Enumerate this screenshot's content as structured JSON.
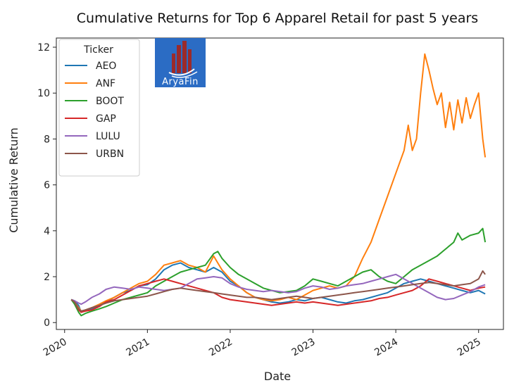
{
  "chart_data": {
    "type": "line",
    "title": "Cumulative Returns for Top 6 Apparel Retail for past 5 years",
    "xlabel": "Date",
    "ylabel": "Cumulative Return",
    "xlim": [
      2019.9,
      2025.3
    ],
    "ylim": [
      -0.3,
      12.4
    ],
    "x_ticks": [
      2020,
      2021,
      2022,
      2023,
      2024,
      2025
    ],
    "x_tick_labels": [
      "2020",
      "2021",
      "2022",
      "2023",
      "2024",
      "2025"
    ],
    "y_ticks": [
      0,
      2,
      4,
      6,
      8,
      10,
      12
    ],
    "y_tick_labels": [
      "0",
      "2",
      "4",
      "6",
      "8",
      "10",
      "12"
    ],
    "grid": false,
    "legend": {
      "title": "Ticker",
      "placement": "top-left"
    },
    "series": [
      {
        "name": "AEO",
        "color": "#1f77b4",
        "x": [
          2020.08,
          2020.12,
          2020.17,
          2020.2,
          2020.25,
          2020.33,
          2020.42,
          2020.5,
          2020.6,
          2020.7,
          2020.8,
          2020.9,
          2021.0,
          2021.1,
          2021.2,
          2021.3,
          2021.4,
          2021.5,
          2021.6,
          2021.7,
          2021.8,
          2021.9,
          2022.0,
          2022.1,
          2022.2,
          2022.3,
          2022.4,
          2022.5,
          2022.6,
          2022.7,
          2022.8,
          2022.9,
          2023.0,
          2023.1,
          2023.2,
          2023.3,
          2023.4,
          2023.5,
          2023.6,
          2023.7,
          2023.8,
          2023.9,
          2024.0,
          2024.1,
          2024.2,
          2024.3,
          2024.4,
          2024.5,
          2024.6,
          2024.7,
          2024.8,
          2024.9,
          2025.0,
          2025.08
        ],
        "values": [
          1.0,
          0.95,
          0.75,
          0.45,
          0.55,
          0.6,
          0.75,
          0.9,
          1.1,
          1.3,
          1.4,
          1.6,
          1.65,
          1.9,
          2.3,
          2.5,
          2.6,
          2.4,
          2.3,
          2.2,
          2.4,
          2.2,
          1.8,
          1.6,
          1.3,
          1.1,
          1.0,
          0.9,
          0.85,
          0.9,
          1.0,
          0.95,
          1.05,
          1.1,
          1.0,
          0.9,
          0.85,
          0.95,
          1.0,
          1.1,
          1.2,
          1.3,
          1.5,
          1.7,
          1.8,
          1.9,
          1.8,
          1.7,
          1.6,
          1.5,
          1.4,
          1.3,
          1.4,
          1.25
        ]
      },
      {
        "name": "ANF",
        "color": "#ff7f0e",
        "x": [
          2020.08,
          2020.12,
          2020.17,
          2020.2,
          2020.25,
          2020.33,
          2020.42,
          2020.5,
          2020.6,
          2020.7,
          2020.8,
          2020.9,
          2021.0,
          2021.1,
          2021.2,
          2021.3,
          2021.4,
          2021.5,
          2021.6,
          2021.7,
          2021.8,
          2021.85,
          2021.9,
          2022.0,
          2022.1,
          2022.2,
          2022.3,
          2022.4,
          2022.5,
          2022.6,
          2022.7,
          2022.8,
          2022.9,
          2023.0,
          2023.1,
          2023.2,
          2023.3,
          2023.4,
          2023.5,
          2023.6,
          2023.7,
          2023.8,
          2023.9,
          2024.0,
          2024.1,
          2024.15,
          2024.2,
          2024.25,
          2024.3,
          2024.35,
          2024.4,
          2024.45,
          2024.5,
          2024.55,
          2024.6,
          2024.65,
          2024.7,
          2024.75,
          2024.8,
          2024.85,
          2024.9,
          2024.95,
          2025.0,
          2025.05,
          2025.08
        ],
        "values": [
          1.0,
          0.9,
          0.65,
          0.5,
          0.55,
          0.65,
          0.8,
          0.95,
          1.1,
          1.3,
          1.5,
          1.7,
          1.8,
          2.1,
          2.5,
          2.6,
          2.7,
          2.5,
          2.4,
          2.2,
          2.9,
          2.6,
          2.3,
          1.9,
          1.6,
          1.3,
          1.1,
          1.0,
          0.95,
          1.0,
          1.1,
          1.0,
          1.2,
          1.4,
          1.5,
          1.6,
          1.5,
          1.6,
          2.0,
          2.8,
          3.5,
          4.5,
          5.5,
          6.5,
          7.5,
          8.6,
          7.5,
          8.0,
          10.0,
          11.7,
          11.0,
          10.2,
          9.5,
          10.0,
          8.5,
          9.6,
          8.4,
          9.7,
          8.7,
          9.8,
          8.9,
          9.5,
          10.0,
          8.0,
          7.2
        ]
      },
      {
        "name": "BOOT",
        "color": "#2ca02c",
        "x": [
          2020.08,
          2020.12,
          2020.17,
          2020.2,
          2020.25,
          2020.33,
          2020.42,
          2020.5,
          2020.6,
          2020.7,
          2020.8,
          2020.9,
          2021.0,
          2021.1,
          2021.2,
          2021.3,
          2021.4,
          2021.5,
          2021.6,
          2021.7,
          2021.8,
          2021.85,
          2021.9,
          2022.0,
          2022.1,
          2022.2,
          2022.3,
          2022.4,
          2022.5,
          2022.6,
          2022.7,
          2022.8,
          2022.9,
          2023.0,
          2023.1,
          2023.2,
          2023.3,
          2023.4,
          2023.5,
          2023.6,
          2023.7,
          2023.8,
          2023.9,
          2024.0,
          2024.1,
          2024.2,
          2024.3,
          2024.4,
          2024.5,
          2024.6,
          2024.7,
          2024.75,
          2024.8,
          2024.9,
          2025.0,
          2025.05,
          2025.08
        ],
        "values": [
          1.0,
          0.8,
          0.45,
          0.3,
          0.4,
          0.5,
          0.6,
          0.7,
          0.85,
          1.0,
          1.1,
          1.2,
          1.3,
          1.6,
          1.8,
          2.0,
          2.2,
          2.3,
          2.4,
          2.5,
          3.0,
          3.1,
          2.8,
          2.4,
          2.1,
          1.9,
          1.7,
          1.5,
          1.4,
          1.3,
          1.35,
          1.4,
          1.6,
          1.9,
          1.8,
          1.7,
          1.6,
          1.8,
          2.0,
          2.2,
          2.3,
          2.0,
          1.8,
          1.7,
          2.0,
          2.3,
          2.5,
          2.7,
          2.9,
          3.2,
          3.5,
          3.9,
          3.6,
          3.8,
          3.9,
          4.1,
          3.5
        ]
      },
      {
        "name": "GAP",
        "color": "#d62728",
        "x": [
          2020.08,
          2020.12,
          2020.17,
          2020.2,
          2020.25,
          2020.33,
          2020.42,
          2020.5,
          2020.6,
          2020.7,
          2020.8,
          2020.9,
          2021.0,
          2021.1,
          2021.2,
          2021.3,
          2021.4,
          2021.5,
          2021.6,
          2021.7,
          2021.8,
          2021.9,
          2022.0,
          2022.1,
          2022.2,
          2022.3,
          2022.4,
          2022.5,
          2022.6,
          2022.7,
          2022.8,
          2022.9,
          2023.0,
          2023.1,
          2023.2,
          2023.3,
          2023.4,
          2023.5,
          2023.6,
          2023.7,
          2023.8,
          2023.9,
          2024.0,
          2024.1,
          2024.2,
          2024.3,
          2024.4,
          2024.5,
          2024.6,
          2024.7,
          2024.8,
          2024.9,
          2025.0,
          2025.08
        ],
        "values": [
          1.0,
          0.9,
          0.55,
          0.45,
          0.5,
          0.55,
          0.7,
          0.9,
          1.0,
          1.2,
          1.4,
          1.6,
          1.7,
          1.8,
          1.9,
          1.8,
          1.7,
          1.6,
          1.5,
          1.4,
          1.3,
          1.1,
          1.0,
          0.95,
          0.9,
          0.85,
          0.8,
          0.75,
          0.8,
          0.85,
          0.9,
          0.85,
          0.9,
          0.85,
          0.8,
          0.75,
          0.8,
          0.85,
          0.9,
          0.95,
          1.05,
          1.1,
          1.2,
          1.3,
          1.4,
          1.6,
          1.9,
          1.8,
          1.7,
          1.6,
          1.5,
          1.4,
          1.5,
          1.55
        ]
      },
      {
        "name": "LULU",
        "color": "#9467bd",
        "x": [
          2020.08,
          2020.12,
          2020.17,
          2020.2,
          2020.25,
          2020.33,
          2020.42,
          2020.5,
          2020.6,
          2020.7,
          2020.8,
          2020.9,
          2021.0,
          2021.1,
          2021.2,
          2021.3,
          2021.4,
          2021.5,
          2021.6,
          2021.7,
          2021.8,
          2021.9,
          2022.0,
          2022.1,
          2022.2,
          2022.3,
          2022.4,
          2022.5,
          2022.6,
          2022.7,
          2022.8,
          2022.9,
          2023.0,
          2023.1,
          2023.2,
          2023.3,
          2023.4,
          2023.5,
          2023.6,
          2023.7,
          2023.8,
          2023.9,
          2024.0,
          2024.1,
          2024.2,
          2024.3,
          2024.4,
          2024.5,
          2024.6,
          2024.7,
          2024.8,
          2024.9,
          2025.0,
          2025.08
        ],
        "values": [
          1.0,
          0.95,
          0.85,
          0.8,
          0.9,
          1.1,
          1.25,
          1.45,
          1.55,
          1.5,
          1.45,
          1.55,
          1.5,
          1.45,
          1.4,
          1.45,
          1.5,
          1.7,
          1.9,
          1.95,
          2.0,
          1.95,
          1.7,
          1.55,
          1.45,
          1.4,
          1.35,
          1.4,
          1.35,
          1.3,
          1.35,
          1.5,
          1.6,
          1.55,
          1.45,
          1.5,
          1.6,
          1.65,
          1.7,
          1.8,
          1.9,
          2.0,
          2.1,
          1.9,
          1.7,
          1.5,
          1.3,
          1.1,
          1.0,
          1.05,
          1.2,
          1.35,
          1.55,
          1.65
        ]
      },
      {
        "name": "URBN",
        "color": "#8c564b",
        "x": [
          2020.08,
          2020.12,
          2020.17,
          2020.2,
          2020.25,
          2020.33,
          2020.42,
          2020.5,
          2020.6,
          2020.7,
          2020.8,
          2020.9,
          2021.0,
          2021.1,
          2021.2,
          2021.3,
          2021.4,
          2021.5,
          2021.6,
          2021.7,
          2021.8,
          2021.9,
          2022.0,
          2022.1,
          2022.2,
          2022.3,
          2022.4,
          2022.5,
          2022.6,
          2022.7,
          2022.8,
          2022.9,
          2023.0,
          2023.1,
          2023.2,
          2023.3,
          2023.4,
          2023.5,
          2023.6,
          2023.7,
          2023.8,
          2023.9,
          2024.0,
          2024.1,
          2024.2,
          2024.3,
          2024.4,
          2024.5,
          2024.6,
          2024.7,
          2024.8,
          2024.9,
          2025.0,
          2025.05,
          2025.08
        ],
        "values": [
          1.0,
          0.9,
          0.6,
          0.5,
          0.55,
          0.65,
          0.75,
          0.85,
          0.95,
          1.0,
          1.05,
          1.1,
          1.15,
          1.25,
          1.35,
          1.45,
          1.5,
          1.45,
          1.4,
          1.35,
          1.3,
          1.25,
          1.2,
          1.15,
          1.1,
          1.1,
          1.05,
          1.0,
          1.05,
          1.1,
          1.15,
          1.1,
          1.05,
          1.1,
          1.15,
          1.2,
          1.25,
          1.3,
          1.35,
          1.4,
          1.45,
          1.5,
          1.55,
          1.6,
          1.65,
          1.7,
          1.75,
          1.7,
          1.65,
          1.6,
          1.65,
          1.7,
          1.9,
          2.25,
          2.1
        ]
      }
    ]
  },
  "logo": {
    "text": "AryaFin",
    "background": "#2b6cc4",
    "bars_color": "#9b2a2a"
  }
}
